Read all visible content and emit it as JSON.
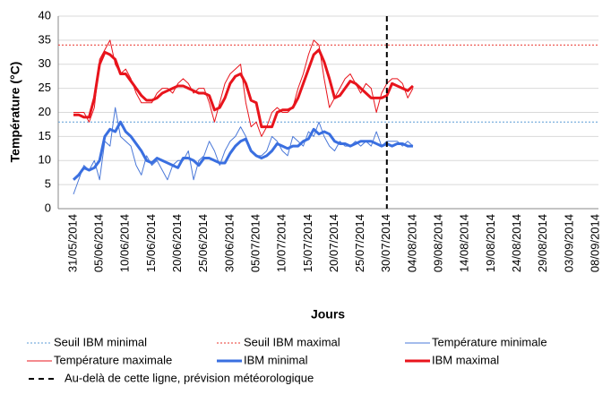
{
  "chart_data": {
    "type": "line",
    "x_label": "Jours",
    "y_label": "Température (°C)",
    "categories": [
      "31/05/2014",
      null,
      null,
      null,
      null,
      "05/06/2014",
      null,
      null,
      null,
      null,
      "10/06/2014",
      null,
      null,
      null,
      null,
      "15/06/2014",
      null,
      null,
      null,
      null,
      "20/06/2014",
      null,
      null,
      null,
      null,
      "25/06/2014",
      null,
      null,
      null,
      null,
      "30/06/2014",
      null,
      null,
      null,
      null,
      "05/07/2014",
      null,
      null,
      null,
      null,
      "10/07/2014",
      null,
      null,
      null,
      null,
      "15/07/2014",
      null,
      null,
      null,
      null,
      "20/07/2014",
      null,
      null,
      null,
      null,
      "25/07/2014",
      null,
      null,
      null,
      null,
      "30/07/2014",
      null,
      null,
      null,
      null,
      "04/08/2014",
      null,
      null,
      null,
      null,
      "09/08/2014",
      null,
      null,
      null,
      null,
      "14/08/2014",
      null,
      null,
      null,
      null,
      "19/08/2014",
      null,
      null,
      null,
      null,
      "24/08/2014",
      null,
      null,
      null,
      null,
      "29/08/2014",
      null,
      null,
      null,
      null,
      "03/09/2014",
      null,
      null,
      null,
      null,
      "08/09/2014"
    ],
    "ylim": [
      0,
      40
    ],
    "yticks": [
      0,
      5,
      10,
      15,
      20,
      25,
      30,
      35,
      40
    ],
    "grid": true,
    "thresholds": [
      {
        "name": "Seuil IBM minimal",
        "value": 18,
        "color": "#5b9bd5"
      },
      {
        "name": "Seuil IBM maximal",
        "value": 34,
        "color": "#e8342c"
      }
    ],
    "series": [
      {
        "name": "Température minimale",
        "color": "#4a78d8",
        "width": 1,
        "values": [
          3,
          6,
          9,
          8,
          10,
          6,
          14,
          13,
          21,
          15,
          14,
          13,
          9,
          7,
          11,
          9,
          10,
          8,
          6,
          9,
          10,
          10,
          12,
          6,
          10,
          11,
          14,
          12,
          9,
          12,
          14,
          15,
          17,
          15,
          12,
          11,
          11,
          12,
          15,
          14,
          12,
          11,
          15,
          14,
          13,
          16,
          15,
          18,
          15,
          13,
          12,
          14,
          13,
          13,
          14,
          13,
          14,
          13,
          16,
          13,
          14,
          14,
          14,
          13,
          14,
          13,
          null,
          null,
          null,
          null,
          null,
          null,
          null,
          null,
          null,
          null,
          null,
          null,
          null,
          null,
          null,
          null,
          null,
          null,
          null,
          null,
          null,
          null,
          null,
          null,
          null,
          null,
          null,
          null,
          null,
          null,
          null,
          null,
          null,
          null,
          null
        ]
      },
      {
        "name": "Température maximale",
        "color": "#e8141c",
        "width": 1,
        "values": [
          20,
          20,
          20,
          18,
          21,
          31,
          33,
          35,
          30,
          28,
          29,
          27,
          24,
          22,
          22,
          22,
          24,
          25,
          25,
          24,
          26,
          27,
          26,
          24,
          25,
          25,
          22,
          18,
          22,
          26,
          28,
          29,
          30,
          22,
          17,
          18,
          15,
          17,
          20,
          21,
          20,
          20,
          21,
          25,
          28,
          32,
          35,
          34,
          27,
          21,
          23,
          25,
          27,
          28,
          26,
          24,
          26,
          25,
          20,
          24,
          26,
          27,
          27,
          26,
          23,
          25,
          null,
          null,
          null,
          null,
          null,
          null,
          null,
          null,
          null,
          null,
          null,
          null,
          null,
          null,
          null,
          null,
          null,
          null,
          null,
          null,
          null,
          null,
          null,
          null,
          null,
          null,
          null,
          null,
          null,
          null,
          null,
          null,
          null,
          null,
          null
        ]
      },
      {
        "name": "IBM minimal",
        "color": "#3a6fe0",
        "width": 3,
        "values": [
          6,
          7,
          8.5,
          8,
          8.5,
          10,
          15,
          16.5,
          16,
          18,
          16,
          15,
          13.5,
          12,
          10,
          9.5,
          10.5,
          10,
          9.5,
          9,
          8.5,
          10.5,
          10.5,
          10,
          9,
          10.5,
          10.5,
          10,
          9.5,
          9.5,
          11.5,
          13,
          14,
          14.5,
          12,
          11,
          10.5,
          11,
          12,
          13.5,
          13,
          12.5,
          13,
          13,
          14,
          14.5,
          16.5,
          15.5,
          16,
          15.5,
          14,
          13.5,
          13.5,
          13,
          13.5,
          14,
          14,
          14,
          13.5,
          13,
          13.5,
          13,
          13.5,
          13.5,
          13,
          13,
          null,
          null,
          null,
          null,
          null,
          null,
          null,
          null,
          null,
          null,
          null,
          null,
          null,
          null,
          null,
          null,
          null,
          null,
          null,
          null,
          null,
          null,
          null,
          null,
          null,
          null,
          null,
          null,
          null,
          null,
          null,
          null,
          null,
          null,
          null
        ]
      },
      {
        "name": "IBM maximal",
        "color": "#e8141c",
        "width": 3,
        "values": [
          19.5,
          19.5,
          19,
          19,
          23,
          30,
          32.5,
          32,
          31,
          28,
          28,
          26.5,
          25,
          23.5,
          22.5,
          22.5,
          23,
          24,
          24.5,
          25,
          25.5,
          25.5,
          25,
          24.5,
          24,
          24,
          23.5,
          20.5,
          21,
          23,
          26,
          27.5,
          28,
          26,
          22.5,
          22,
          17,
          17,
          17,
          20,
          20.5,
          20.5,
          21,
          23,
          26,
          29,
          32,
          33,
          30.5,
          27,
          23,
          23.5,
          25,
          26.5,
          26,
          25,
          24,
          23,
          23,
          23,
          23.5,
          26,
          25.5,
          25,
          24.5,
          25.5,
          null,
          null,
          null,
          null,
          null,
          null,
          null,
          null,
          null,
          null,
          null,
          null,
          null,
          null,
          null,
          null,
          null,
          null,
          null,
          null,
          null,
          null,
          null,
          null,
          null,
          null,
          null,
          null,
          null,
          null,
          null,
          null,
          null,
          null,
          null
        ]
      }
    ],
    "forecast_line": {
      "category": "30/07/2014",
      "label": "Au-delà de cette ligne, prévision météorologique",
      "color": "#000000"
    }
  }
}
